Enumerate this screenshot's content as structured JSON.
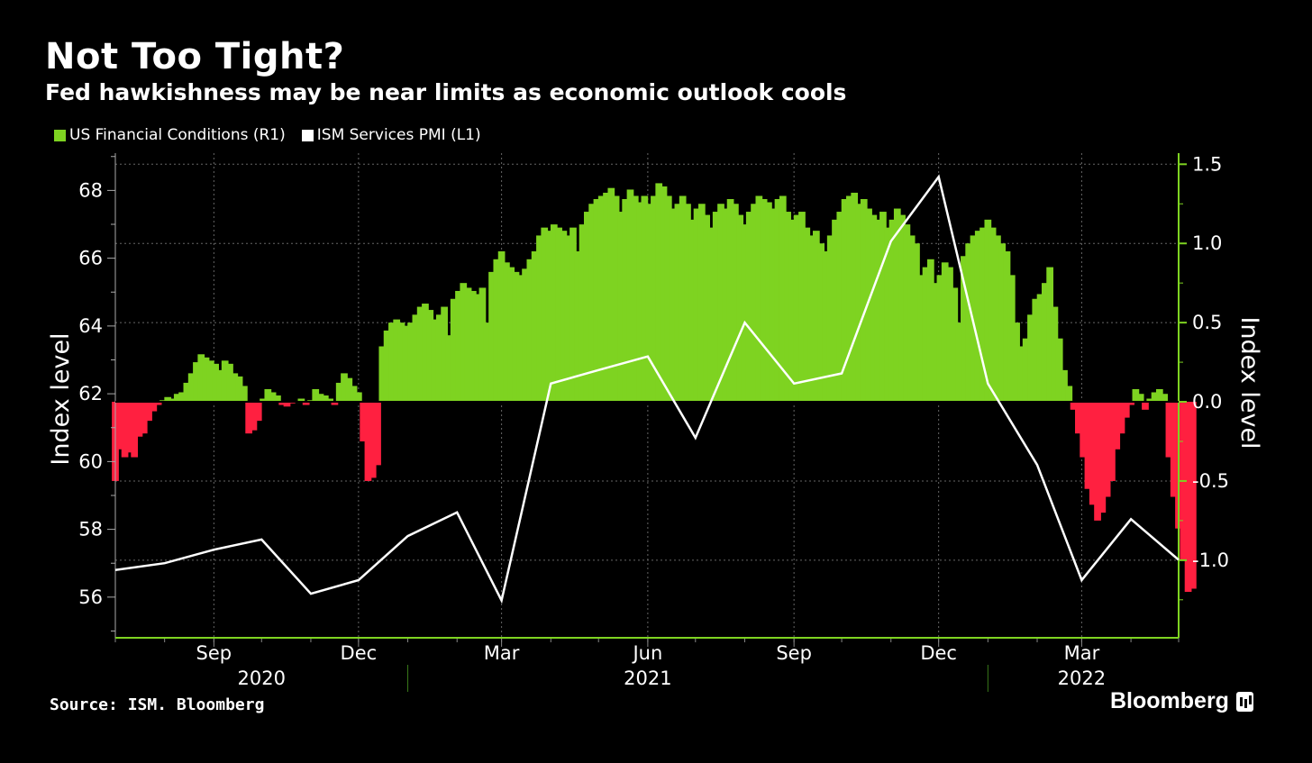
{
  "title": "Not Too Tight?",
  "subtitle": "Fed hawkishness may be near limits as economic outlook cools",
  "legend": [
    {
      "label": "US Financial Conditions  (R1)",
      "color": "#7ED321"
    },
    {
      "label": "ISM Services PMI (L1)",
      "color": "#FFFFFF"
    }
  ],
  "source": "Source: ISM. Bloomberg",
  "brand": "Bloomberg",
  "chart_data": {
    "type": "bar",
    "left_axis": {
      "label": "Index level",
      "ticks": [
        56,
        58,
        60,
        62,
        64,
        66,
        68
      ],
      "range": [
        54.8,
        69.1
      ]
    },
    "right_axis": {
      "label": "Index level",
      "ticks": [
        -1.0,
        -0.5,
        0.0,
        0.5,
        1.0,
        1.5
      ],
      "tick_labels": [
        "-1.0",
        "-0.5",
        "0.0",
        "0.5",
        "1.0",
        "1.5"
      ],
      "range": [
        -1.49,
        1.57
      ]
    },
    "x_ticks": [
      {
        "label": "Sep",
        "date": "2020-09-01"
      },
      {
        "label": "Dec",
        "date": "2020-12-01"
      },
      {
        "label": "Mar",
        "date": "2021-03-01"
      },
      {
        "label": "Jun",
        "date": "2021-06-01"
      },
      {
        "label": "Sep",
        "date": "2021-09-01"
      },
      {
        "label": "Dec",
        "date": "2021-12-01"
      },
      {
        "label": "Mar",
        "date": "2022-03-01"
      }
    ],
    "year_labels": [
      {
        "label": "2020",
        "date": "2020-10-01"
      },
      {
        "label": "2021",
        "date": "2021-06-01"
      },
      {
        "label": "2022",
        "date": "2022-03-01"
      }
    ],
    "year_separators": [
      "2021-01-01",
      "2022-01-01"
    ],
    "x_range": [
      "2020-07-01",
      "2022-05-01"
    ],
    "grid": true,
    "legend_position": "top-left",
    "series": [
      {
        "name": "US Financial Conditions",
        "axis": "right",
        "kind": "bar",
        "positive_color": "#7ED321",
        "negative_color": "#FF2040",
        "points": [
          [
            "2020-07-01",
            -0.5
          ],
          [
            "2020-07-04",
            -0.3
          ],
          [
            "2020-07-07",
            -0.35
          ],
          [
            "2020-07-10",
            -0.32
          ],
          [
            "2020-07-13",
            -0.35
          ],
          [
            "2020-07-16",
            -0.22
          ],
          [
            "2020-07-19",
            -0.2
          ],
          [
            "2020-07-22",
            -0.12
          ],
          [
            "2020-07-25",
            -0.06
          ],
          [
            "2020-07-28",
            -0.02
          ],
          [
            "2020-07-31",
            0.01
          ],
          [
            "2020-08-03",
            0.03
          ],
          [
            "2020-08-06",
            0.02
          ],
          [
            "2020-08-09",
            0.05
          ],
          [
            "2020-08-12",
            0.06
          ],
          [
            "2020-08-15",
            0.12
          ],
          [
            "2020-08-18",
            0.18
          ],
          [
            "2020-08-21",
            0.25
          ],
          [
            "2020-08-24",
            0.3
          ],
          [
            "2020-08-27",
            0.28
          ],
          [
            "2020-08-30",
            0.26
          ],
          [
            "2020-09-02",
            0.24
          ],
          [
            "2020-09-05",
            0.2
          ],
          [
            "2020-09-08",
            0.26
          ],
          [
            "2020-09-11",
            0.24
          ],
          [
            "2020-09-14",
            0.18
          ],
          [
            "2020-09-17",
            0.16
          ],
          [
            "2020-09-20",
            0.1
          ],
          [
            "2020-09-23",
            -0.2
          ],
          [
            "2020-09-26",
            -0.18
          ],
          [
            "2020-09-29",
            -0.12
          ],
          [
            "2020-10-02",
            0.02
          ],
          [
            "2020-10-05",
            0.08
          ],
          [
            "2020-10-08",
            0.06
          ],
          [
            "2020-10-11",
            0.04
          ],
          [
            "2020-10-14",
            -0.02
          ],
          [
            "2020-10-17",
            -0.03
          ],
          [
            "2020-10-20",
            -0.01
          ],
          [
            "2020-10-23",
            0.0
          ],
          [
            "2020-10-26",
            0.02
          ],
          [
            "2020-10-29",
            -0.02
          ],
          [
            "2020-11-01",
            0.01
          ],
          [
            "2020-11-04",
            0.08
          ],
          [
            "2020-11-07",
            0.05
          ],
          [
            "2020-11-10",
            0.04
          ],
          [
            "2020-11-13",
            0.02
          ],
          [
            "2020-11-16",
            -0.02
          ],
          [
            "2020-11-19",
            0.12
          ],
          [
            "2020-11-22",
            0.18
          ],
          [
            "2020-11-25",
            0.15
          ],
          [
            "2020-11-28",
            0.1
          ],
          [
            "2020-12-01",
            0.06
          ],
          [
            "2020-12-04",
            -0.25
          ],
          [
            "2020-12-07",
            -0.5
          ],
          [
            "2020-12-10",
            -0.48
          ],
          [
            "2020-12-13",
            -0.4
          ],
          [
            "2020-12-16",
            0.35
          ],
          [
            "2020-12-19",
            0.45
          ],
          [
            "2020-12-22",
            0.5
          ],
          [
            "2020-12-25",
            0.52
          ],
          [
            "2020-12-28",
            0.5
          ],
          [
            "2020-12-31",
            0.48
          ],
          [
            "2021-01-03",
            0.5
          ],
          [
            "2021-01-06",
            0.55
          ],
          [
            "2021-01-09",
            0.6
          ],
          [
            "2021-01-12",
            0.62
          ],
          [
            "2021-01-15",
            0.58
          ],
          [
            "2021-01-18",
            0.52
          ],
          [
            "2021-01-21",
            0.55
          ],
          [
            "2021-01-24",
            0.6
          ],
          [
            "2021-01-27",
            0.42
          ],
          [
            "2021-01-30",
            0.65
          ],
          [
            "2021-02-02",
            0.7
          ],
          [
            "2021-02-05",
            0.75
          ],
          [
            "2021-02-08",
            0.72
          ],
          [
            "2021-02-11",
            0.7
          ],
          [
            "2021-02-14",
            0.68
          ],
          [
            "2021-02-17",
            0.72
          ],
          [
            "2021-02-20",
            0.5
          ],
          [
            "2021-02-23",
            0.82
          ],
          [
            "2021-02-26",
            0.9
          ],
          [
            "2021-03-01",
            0.95
          ],
          [
            "2021-03-04",
            0.88
          ],
          [
            "2021-03-07",
            0.85
          ],
          [
            "2021-03-10",
            0.82
          ],
          [
            "2021-03-13",
            0.8
          ],
          [
            "2021-03-16",
            0.84
          ],
          [
            "2021-03-19",
            0.9
          ],
          [
            "2021-03-22",
            0.95
          ],
          [
            "2021-03-25",
            1.05
          ],
          [
            "2021-03-28",
            1.1
          ],
          [
            "2021-03-31",
            1.08
          ],
          [
            "2021-04-03",
            1.12
          ],
          [
            "2021-04-06",
            1.1
          ],
          [
            "2021-04-09",
            1.08
          ],
          [
            "2021-04-12",
            1.05
          ],
          [
            "2021-04-15",
            1.1
          ],
          [
            "2021-04-18",
            0.95
          ],
          [
            "2021-04-21",
            1.12
          ],
          [
            "2021-04-24",
            1.2
          ],
          [
            "2021-04-27",
            1.25
          ],
          [
            "2021-04-30",
            1.28
          ],
          [
            "2021-05-03",
            1.3
          ],
          [
            "2021-05-06",
            1.32
          ],
          [
            "2021-05-09",
            1.35
          ],
          [
            "2021-05-12",
            1.3
          ],
          [
            "2021-05-15",
            1.2
          ],
          [
            "2021-05-18",
            1.28
          ],
          [
            "2021-05-21",
            1.34
          ],
          [
            "2021-05-24",
            1.3
          ],
          [
            "2021-05-27",
            1.26
          ],
          [
            "2021-05-30",
            1.3
          ],
          [
            "2021-06-02",
            1.25
          ],
          [
            "2021-06-05",
            1.3
          ],
          [
            "2021-06-08",
            1.38
          ],
          [
            "2021-06-11",
            1.36
          ],
          [
            "2021-06-14",
            1.3
          ],
          [
            "2021-06-17",
            1.22
          ],
          [
            "2021-06-20",
            1.25
          ],
          [
            "2021-06-23",
            1.3
          ],
          [
            "2021-06-26",
            1.25
          ],
          [
            "2021-06-29",
            1.15
          ],
          [
            "2021-07-02",
            1.22
          ],
          [
            "2021-07-05",
            1.25
          ],
          [
            "2021-07-08",
            1.18
          ],
          [
            "2021-07-11",
            1.1
          ],
          [
            "2021-07-14",
            1.2
          ],
          [
            "2021-07-17",
            1.25
          ],
          [
            "2021-07-20",
            1.22
          ],
          [
            "2021-07-23",
            1.28
          ],
          [
            "2021-07-26",
            1.25
          ],
          [
            "2021-07-29",
            1.18
          ],
          [
            "2021-08-01",
            1.12
          ],
          [
            "2021-08-04",
            1.2
          ],
          [
            "2021-08-07",
            1.25
          ],
          [
            "2021-08-10",
            1.3
          ],
          [
            "2021-08-13",
            1.28
          ],
          [
            "2021-08-16",
            1.26
          ],
          [
            "2021-08-19",
            1.22
          ],
          [
            "2021-08-22",
            1.28
          ],
          [
            "2021-08-25",
            1.3
          ],
          [
            "2021-08-28",
            1.2
          ],
          [
            "2021-08-31",
            1.15
          ],
          [
            "2021-09-03",
            1.18
          ],
          [
            "2021-09-06",
            1.2
          ],
          [
            "2021-09-09",
            1.1
          ],
          [
            "2021-09-12",
            1.05
          ],
          [
            "2021-09-15",
            1.08
          ],
          [
            "2021-09-18",
            1.0
          ],
          [
            "2021-09-21",
            0.95
          ],
          [
            "2021-09-24",
            1.05
          ],
          [
            "2021-09-27",
            1.15
          ],
          [
            "2021-09-30",
            1.2
          ],
          [
            "2021-10-03",
            1.28
          ],
          [
            "2021-10-06",
            1.3
          ],
          [
            "2021-10-09",
            1.32
          ],
          [
            "2021-10-12",
            1.25
          ],
          [
            "2021-10-15",
            1.28
          ],
          [
            "2021-10-18",
            1.22
          ],
          [
            "2021-10-21",
            1.18
          ],
          [
            "2021-10-24",
            1.15
          ],
          [
            "2021-10-27",
            1.2
          ],
          [
            "2021-10-30",
            1.1
          ],
          [
            "2021-11-02",
            1.15
          ],
          [
            "2021-11-05",
            1.22
          ],
          [
            "2021-11-08",
            1.18
          ],
          [
            "2021-11-11",
            1.12
          ],
          [
            "2021-11-14",
            1.05
          ],
          [
            "2021-11-17",
            1.0
          ],
          [
            "2021-11-20",
            0.8
          ],
          [
            "2021-11-23",
            0.85
          ],
          [
            "2021-11-26",
            0.9
          ],
          [
            "2021-11-29",
            0.75
          ],
          [
            "2021-12-02",
            0.8
          ],
          [
            "2021-12-05",
            0.88
          ],
          [
            "2021-12-08",
            0.85
          ],
          [
            "2021-12-11",
            0.72
          ],
          [
            "2021-12-14",
            0.5
          ],
          [
            "2021-12-17",
            0.92
          ],
          [
            "2021-12-20",
            1.0
          ],
          [
            "2021-12-23",
            1.05
          ],
          [
            "2021-12-26",
            1.08
          ],
          [
            "2021-12-29",
            1.1
          ],
          [
            "2022-01-01",
            1.15
          ],
          [
            "2022-01-04",
            1.1
          ],
          [
            "2022-01-07",
            1.05
          ],
          [
            "2022-01-10",
            1.0
          ],
          [
            "2022-01-13",
            0.95
          ],
          [
            "2022-01-16",
            0.8
          ],
          [
            "2022-01-19",
            0.5
          ],
          [
            "2022-01-22",
            0.35
          ],
          [
            "2022-01-25",
            0.4
          ],
          [
            "2022-01-28",
            0.55
          ],
          [
            "2022-01-31",
            0.65
          ],
          [
            "2022-02-03",
            0.68
          ],
          [
            "2022-02-06",
            0.75
          ],
          [
            "2022-02-09",
            0.85
          ],
          [
            "2022-02-12",
            0.6
          ],
          [
            "2022-02-15",
            0.4
          ],
          [
            "2022-02-18",
            0.2
          ],
          [
            "2022-02-21",
            0.1
          ],
          [
            "2022-02-24",
            -0.05
          ],
          [
            "2022-02-27",
            -0.2
          ],
          [
            "2022-03-02",
            -0.35
          ],
          [
            "2022-03-05",
            -0.55
          ],
          [
            "2022-03-08",
            -0.65
          ],
          [
            "2022-03-11",
            -0.75
          ],
          [
            "2022-03-14",
            -0.7
          ],
          [
            "2022-03-17",
            -0.6
          ],
          [
            "2022-03-20",
            -0.5
          ],
          [
            "2022-03-23",
            -0.3
          ],
          [
            "2022-03-26",
            -0.2
          ],
          [
            "2022-03-29",
            -0.1
          ],
          [
            "2022-04-01",
            -0.02
          ],
          [
            "2022-04-04",
            0.08
          ],
          [
            "2022-04-07",
            0.05
          ],
          [
            "2022-04-10",
            -0.05
          ],
          [
            "2022-04-13",
            0.02
          ],
          [
            "2022-04-16",
            0.06
          ],
          [
            "2022-04-19",
            0.08
          ],
          [
            "2022-04-22",
            0.05
          ],
          [
            "2022-04-25",
            -0.35
          ],
          [
            "2022-04-28",
            -0.6
          ],
          [
            "2022-05-01",
            -0.8
          ],
          [
            "2022-05-04",
            -1.0
          ],
          [
            "2022-05-07",
            -1.2
          ],
          [
            "2022-05-10",
            -1.18
          ]
        ]
      },
      {
        "name": "ISM Services PMI",
        "axis": "left",
        "kind": "line",
        "color": "#FFFFFF",
        "points": [
          [
            "2020-07-01",
            56.8
          ],
          [
            "2020-08-01",
            57.0
          ],
          [
            "2020-09-01",
            57.4
          ],
          [
            "2020-10-01",
            57.7
          ],
          [
            "2020-11-01",
            56.1
          ],
          [
            "2020-12-01",
            56.5
          ],
          [
            "2021-01-01",
            57.8
          ],
          [
            "2021-02-01",
            58.5
          ],
          [
            "2021-03-01",
            55.9
          ],
          [
            "2021-04-01",
            62.3
          ],
          [
            "2021-05-01",
            62.7
          ],
          [
            "2021-06-01",
            63.1
          ],
          [
            "2021-07-01",
            60.7
          ],
          [
            "2021-08-01",
            64.1
          ],
          [
            "2021-09-01",
            62.3
          ],
          [
            "2021-10-01",
            62.6
          ],
          [
            "2021-11-01",
            66.5
          ],
          [
            "2021-12-01",
            68.4
          ],
          [
            "2022-01-01",
            62.3
          ],
          [
            "2022-02-01",
            59.9
          ],
          [
            "2022-03-01",
            56.5
          ],
          [
            "2022-04-01",
            58.3
          ],
          [
            "2022-05-01",
            57.1
          ]
        ]
      }
    ]
  }
}
